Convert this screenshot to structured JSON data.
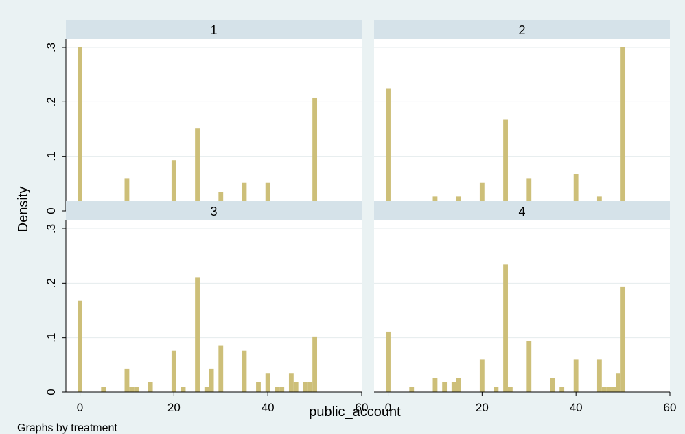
{
  "chart_data": {
    "type": "bar",
    "ylabel": "Density",
    "xlabel": "public_account",
    "note": "Graphs by treatment",
    "xlim": [
      -3,
      60
    ],
    "ylim": [
      0,
      0.3
    ],
    "xticks": [
      0,
      20,
      40,
      60
    ],
    "xtick_labels": [
      "0",
      "20",
      "40",
      "60"
    ],
    "yticks": [
      0,
      0.1,
      0.2,
      0.3
    ],
    "ytick_labels": [
      "0",
      ".1",
      ".2",
      ".3"
    ],
    "bar_width": 1,
    "colors": {
      "bar": "#cdbf79",
      "strip": "#d5e2e9",
      "grid": "#e4ebed",
      "panel": "#ffffff",
      "background": "#eaf2f3"
    },
    "panels": [
      {
        "title": "1",
        "bars": [
          [
            0,
            0.3
          ],
          [
            2,
            0.009
          ],
          [
            5,
            0.009
          ],
          [
            8,
            0.009
          ],
          [
            10,
            0.06
          ],
          [
            20,
            0.093
          ],
          [
            25,
            0.151
          ],
          [
            28,
            0.009
          ],
          [
            30,
            0.035
          ],
          [
            33,
            0.009
          ],
          [
            35,
            0.052
          ],
          [
            36,
            0.009
          ],
          [
            40,
            0.052
          ],
          [
            45,
            0.018
          ],
          [
            50,
            0.208
          ]
        ]
      },
      {
        "title": "2",
        "bars": [
          [
            0,
            0.225
          ],
          [
            2,
            0.009
          ],
          [
            10,
            0.026
          ],
          [
            15,
            0.026
          ],
          [
            20,
            0.052
          ],
          [
            23,
            0.009
          ],
          [
            25,
            0.167
          ],
          [
            26,
            0.009
          ],
          [
            28,
            0.018
          ],
          [
            30,
            0.06
          ],
          [
            35,
            0.018
          ],
          [
            40,
            0.068
          ],
          [
            45,
            0.026
          ],
          [
            48,
            0.009
          ],
          [
            50,
            0.3
          ]
        ]
      },
      {
        "title": "3",
        "bars": [
          [
            0,
            0.168
          ],
          [
            5,
            0.009
          ],
          [
            10,
            0.043
          ],
          [
            11,
            0.009
          ],
          [
            12,
            0.009
          ],
          [
            15,
            0.018
          ],
          [
            20,
            0.076
          ],
          [
            22,
            0.009
          ],
          [
            25,
            0.21
          ],
          [
            27,
            0.009
          ],
          [
            28,
            0.043
          ],
          [
            30,
            0.085
          ],
          [
            35,
            0.076
          ],
          [
            38,
            0.018
          ],
          [
            40,
            0.035
          ],
          [
            42,
            0.009
          ],
          [
            43,
            0.009
          ],
          [
            45,
            0.035
          ],
          [
            46,
            0.018
          ],
          [
            48,
            0.018
          ],
          [
            49,
            0.018
          ],
          [
            50,
            0.101
          ]
        ]
      },
      {
        "title": "4",
        "bars": [
          [
            0,
            0.111
          ],
          [
            5,
            0.009
          ],
          [
            10,
            0.026
          ],
          [
            12,
            0.018
          ],
          [
            14,
            0.018
          ],
          [
            15,
            0.026
          ],
          [
            20,
            0.06
          ],
          [
            23,
            0.009
          ],
          [
            25,
            0.234
          ],
          [
            26,
            0.009
          ],
          [
            30,
            0.094
          ],
          [
            35,
            0.026
          ],
          [
            37,
            0.009
          ],
          [
            40,
            0.06
          ],
          [
            45,
            0.06
          ],
          [
            46,
            0.009
          ],
          [
            47,
            0.009
          ],
          [
            48,
            0.009
          ],
          [
            49,
            0.035
          ],
          [
            50,
            0.193
          ]
        ]
      }
    ]
  }
}
